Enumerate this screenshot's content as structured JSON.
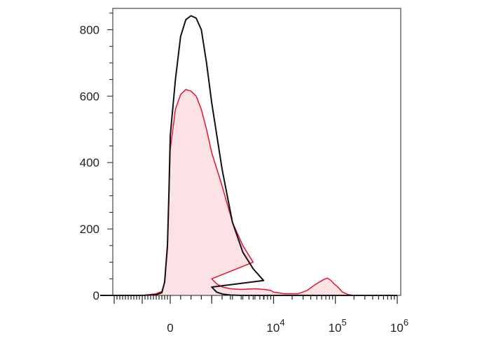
{
  "chart_data": {
    "type": "area",
    "xlabel": "",
    "ylabel": "",
    "x_scale": "biexponential",
    "xlim": [
      -2500,
      1000000
    ],
    "ylim": [
      0,
      860
    ],
    "y_ticks": [
      {
        "value": 0,
        "label": "0"
      },
      {
        "value": 200,
        "label": "200"
      },
      {
        "value": 400,
        "label": "400"
      },
      {
        "value": 600,
        "label": "600"
      },
      {
        "value": 800,
        "label": "800"
      }
    ],
    "x_ticks": [
      {
        "value": 0,
        "label": "0"
      },
      {
        "value": 10000,
        "base": "10",
        "exp": "4"
      },
      {
        "value": 100000,
        "base": "10",
        "exp": "5"
      },
      {
        "value": 1000000,
        "base": "10",
        "exp": "6"
      }
    ],
    "series": [
      {
        "color": "#111111",
        "fill": "none",
        "points": [
          [
            -2500,
            0
          ],
          [
            -1000,
            0
          ],
          [
            -500,
            2
          ],
          [
            -300,
            8
          ],
          [
            -200,
            40
          ],
          [
            -100,
            150
          ],
          [
            -50,
            300
          ],
          [
            0,
            480
          ],
          [
            50,
            650
          ],
          [
            100,
            780
          ],
          [
            150,
            830
          ],
          [
            200,
            842
          ],
          [
            250,
            835
          ],
          [
            300,
            800
          ],
          [
            350,
            700
          ],
          [
            400,
            580
          ],
          [
            500,
            380
          ],
          [
            600,
            220
          ],
          [
            700,
            130
          ],
          [
            800,
            80
          ],
          [
            900,
            45
          ],
          [
            1000,
            25
          ],
          [
            1200,
            10
          ],
          [
            1500,
            4
          ],
          [
            2000,
            1
          ],
          [
            3000,
            0
          ],
          [
            20000,
            0
          ],
          [
            1000000,
            0
          ]
        ]
      },
      {
        "color": "#e8102e",
        "fill": "#fbe3e5",
        "points": [
          [
            -2500,
            0
          ],
          [
            -1000,
            0
          ],
          [
            -500,
            5
          ],
          [
            -300,
            12
          ],
          [
            -200,
            40
          ],
          [
            -100,
            140
          ],
          [
            -50,
            280
          ],
          [
            0,
            440
          ],
          [
            50,
            560
          ],
          [
            100,
            605
          ],
          [
            150,
            620
          ],
          [
            200,
            615
          ],
          [
            250,
            600
          ],
          [
            300,
            560
          ],
          [
            350,
            500
          ],
          [
            400,
            430
          ],
          [
            500,
            330
          ],
          [
            600,
            220
          ],
          [
            700,
            150
          ],
          [
            800,
            100
          ],
          [
            1000,
            50
          ],
          [
            1200,
            35
          ],
          [
            1500,
            25
          ],
          [
            2000,
            20
          ],
          [
            3000,
            18
          ],
          [
            5000,
            20
          ],
          [
            7000,
            18
          ],
          [
            9000,
            15
          ],
          [
            10000,
            10
          ],
          [
            15000,
            5
          ],
          [
            25000,
            5
          ],
          [
            35000,
            15
          ],
          [
            45000,
            30
          ],
          [
            55000,
            40
          ],
          [
            65000,
            48
          ],
          [
            75000,
            52
          ],
          [
            85000,
            45
          ],
          [
            95000,
            35
          ],
          [
            110000,
            25
          ],
          [
            130000,
            10
          ],
          [
            160000,
            3
          ],
          [
            200000,
            0
          ],
          [
            1000000,
            0
          ]
        ]
      }
    ]
  }
}
